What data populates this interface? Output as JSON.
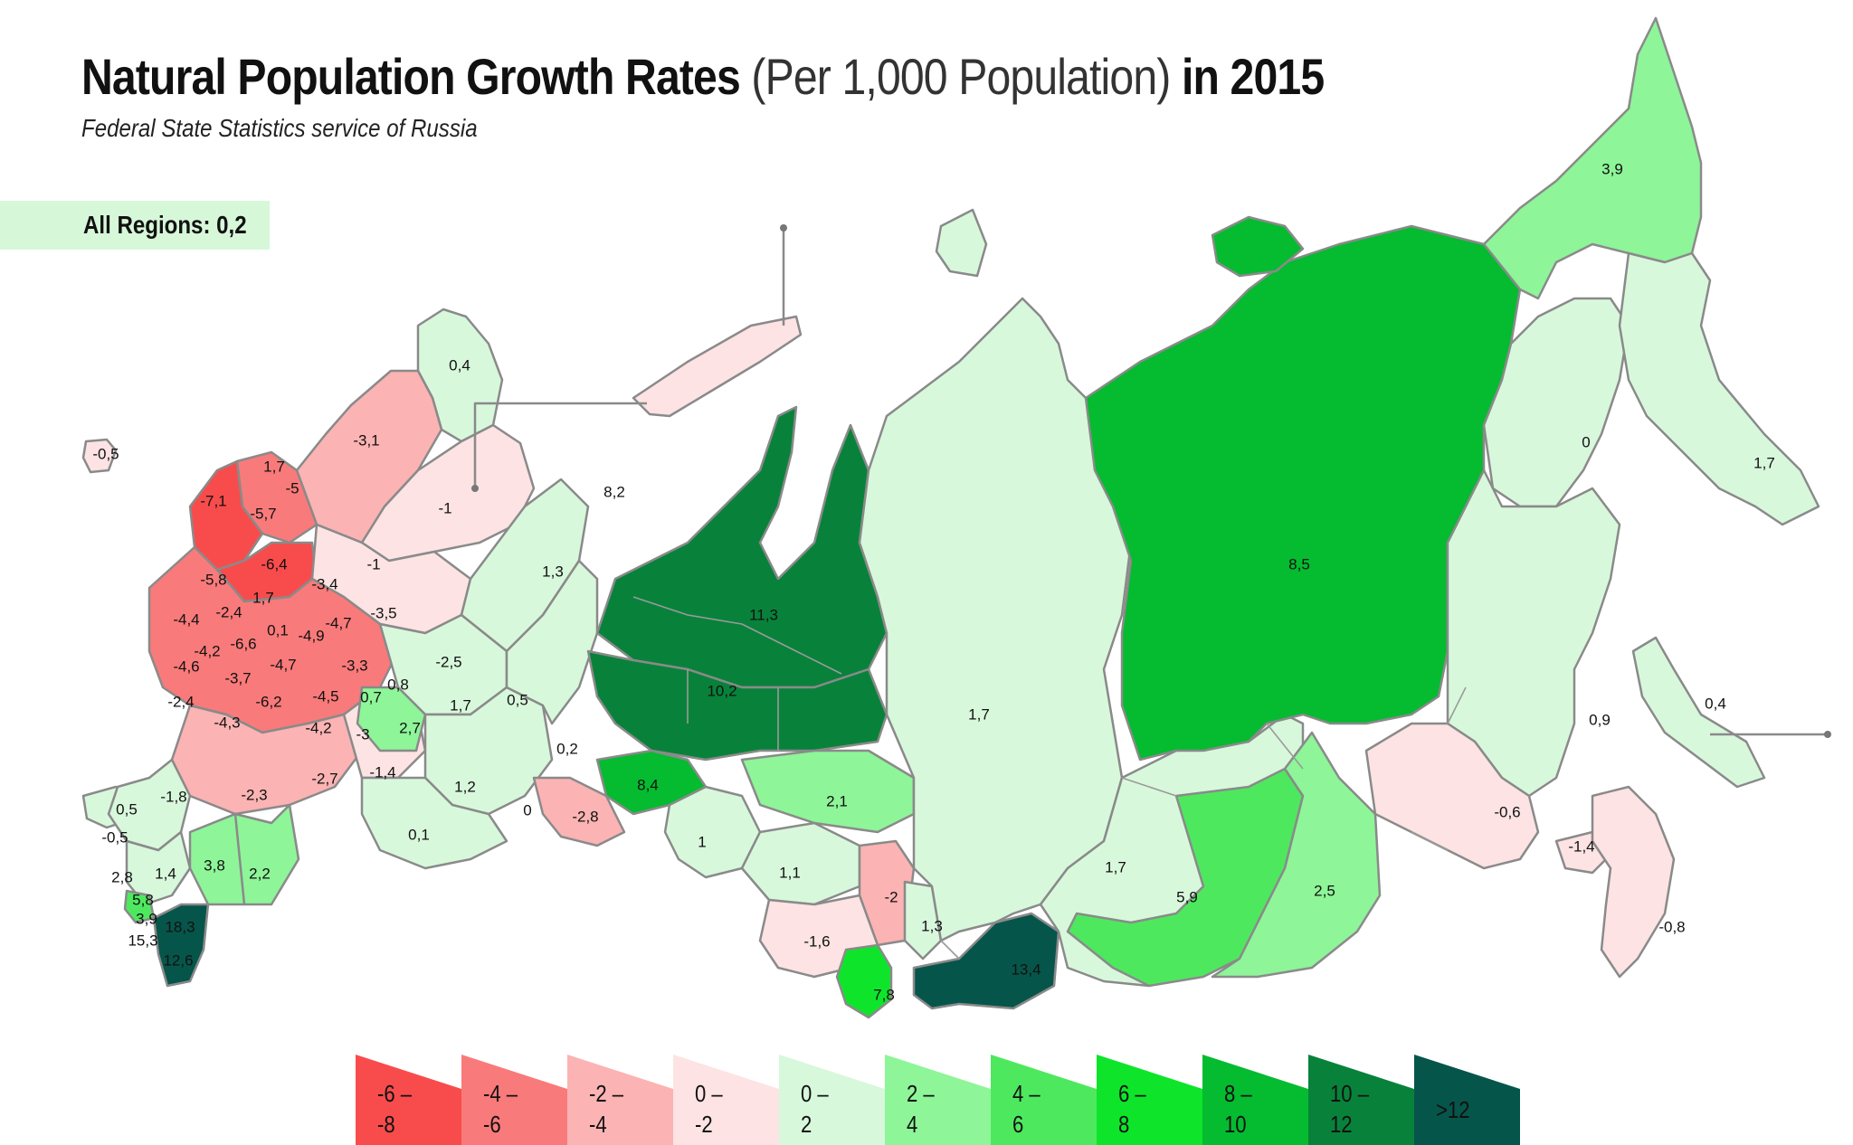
{
  "header": {
    "title_main": "Natural Population Growth Rates",
    "title_paren": "(Per 1,000 Population)",
    "title_year": "in 2015",
    "subtitle": "Federal State Statistics service of Russia"
  },
  "summary": {
    "text": "All Regions: 0,2"
  },
  "colors": {
    "bin_-8_-6": "#f84c4c",
    "bin_-6_-4": "#f97a7a",
    "bin_-4_-2": "#fbb3b3",
    "bin_-2_0": "#fde3e3",
    "bin_0_2": "#d8f8dc",
    "bin_2_4": "#8ef598",
    "bin_4_6": "#4ee85f",
    "bin_6_8": "#0ee52a",
    "bin_8_10": "#05bb30",
    "bin_10_12": "#08823a",
    "bin_gt_12": "#06554a",
    "outline": "#8a8a8a"
  },
  "legend": [
    {
      "line1": "-6 –",
      "line2": "-8",
      "color": "#f84c4c"
    },
    {
      "line1": "-4 –",
      "line2": "-6",
      "color": "#f97a7a"
    },
    {
      "line1": "-2 –",
      "line2": "-4",
      "color": "#fbb3b3"
    },
    {
      "line1": "0 –",
      "line2": "-2",
      "color": "#fde3e3"
    },
    {
      "line1": "0 –",
      "line2": "2",
      "color": "#d8f8dc"
    },
    {
      "line1": "2 –",
      "line2": "4",
      "color": "#8ef598"
    },
    {
      "line1": "4 –",
      "line2": "6",
      "color": "#4ee85f"
    },
    {
      "line1": "6 –",
      "line2": "8",
      "color": "#0ee52a"
    },
    {
      "line1": "8 –",
      "line2": "10",
      "color": "#05bb30"
    },
    {
      "line1": "10 –",
      "line2": "12",
      "color": "#08823a"
    },
    {
      "line1": ">12",
      "line2": "",
      "color": "#06554a"
    }
  ],
  "region_labels": [
    "-0,5",
    "0,4",
    "-3,1",
    "1,7",
    "-5",
    "-7,1",
    "-5,7",
    "-1",
    "-6,4",
    "-1",
    "-5,8",
    "-3,4",
    "1,3",
    "1,7",
    "-4,4",
    "-2,4",
    "0,1",
    "-4,9",
    "-4,7",
    "-3,5",
    "-6,6",
    "-4,2",
    "-4,6",
    "-3,7",
    "-4,7",
    "-3,3",
    "-2,5",
    "-2,4",
    "-6,2",
    "-4,5",
    "0,7",
    "0,8",
    "-4,3",
    "-4,2",
    "-3",
    "2,7",
    "1,7",
    "0,5",
    "0,2",
    "-1,4",
    "-1,8",
    "-2,3",
    "-2,7",
    "1,2",
    "0",
    "-2,8",
    "0,5",
    "-0,5",
    "0,1",
    "2,8",
    "1,4",
    "3,8",
    "2,2",
    "5,8",
    "3,9",
    "18,3",
    "15,3",
    "12,6",
    "8,2",
    "11,3",
    "10,2",
    "8,4",
    "1",
    "2,1",
    "1,1",
    "-2",
    "-1,6",
    "1,3",
    "7,8",
    "13,4",
    "1,7",
    "1,7",
    "8,5",
    "5,9",
    "2,5",
    "3,9",
    "0",
    "1,7",
    "0,9",
    "0,4",
    "-0,6",
    "-1,4",
    "-0,8"
  ]
}
